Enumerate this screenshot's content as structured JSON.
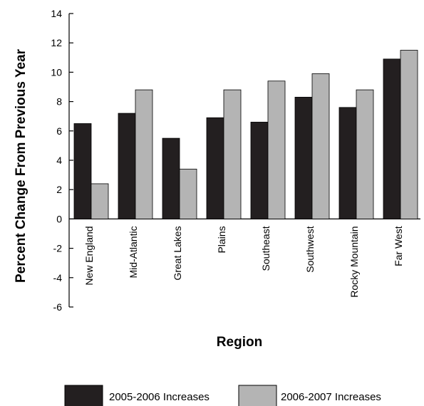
{
  "chart_data": {
    "type": "bar",
    "title": "",
    "xlabel": "Region",
    "ylabel": "Percent Change From Previous Year",
    "ylim": [
      -6,
      14
    ],
    "yticks": [
      14,
      12,
      10,
      8,
      6,
      4,
      2,
      0,
      -2,
      -4,
      -6
    ],
    "grid": false,
    "legend_position": "bottom",
    "categories": [
      "New England",
      "Mid-Atlantic",
      "Great Lakes",
      "Plains",
      "Southeast",
      "Southwest",
      "Rocky Mountain",
      "Far West"
    ],
    "series": [
      {
        "name": "2005-2006 Increases",
        "color": "#231f20",
        "values": [
          6.5,
          7.2,
          5.5,
          6.9,
          6.6,
          8.3,
          7.6,
          10.9
        ]
      },
      {
        "name": "2006-2007 Increases",
        "color": "#b4b4b4",
        "values": [
          2.4,
          8.8,
          3.4,
          8.8,
          9.4,
          9.9,
          8.8,
          11.5
        ]
      }
    ]
  }
}
